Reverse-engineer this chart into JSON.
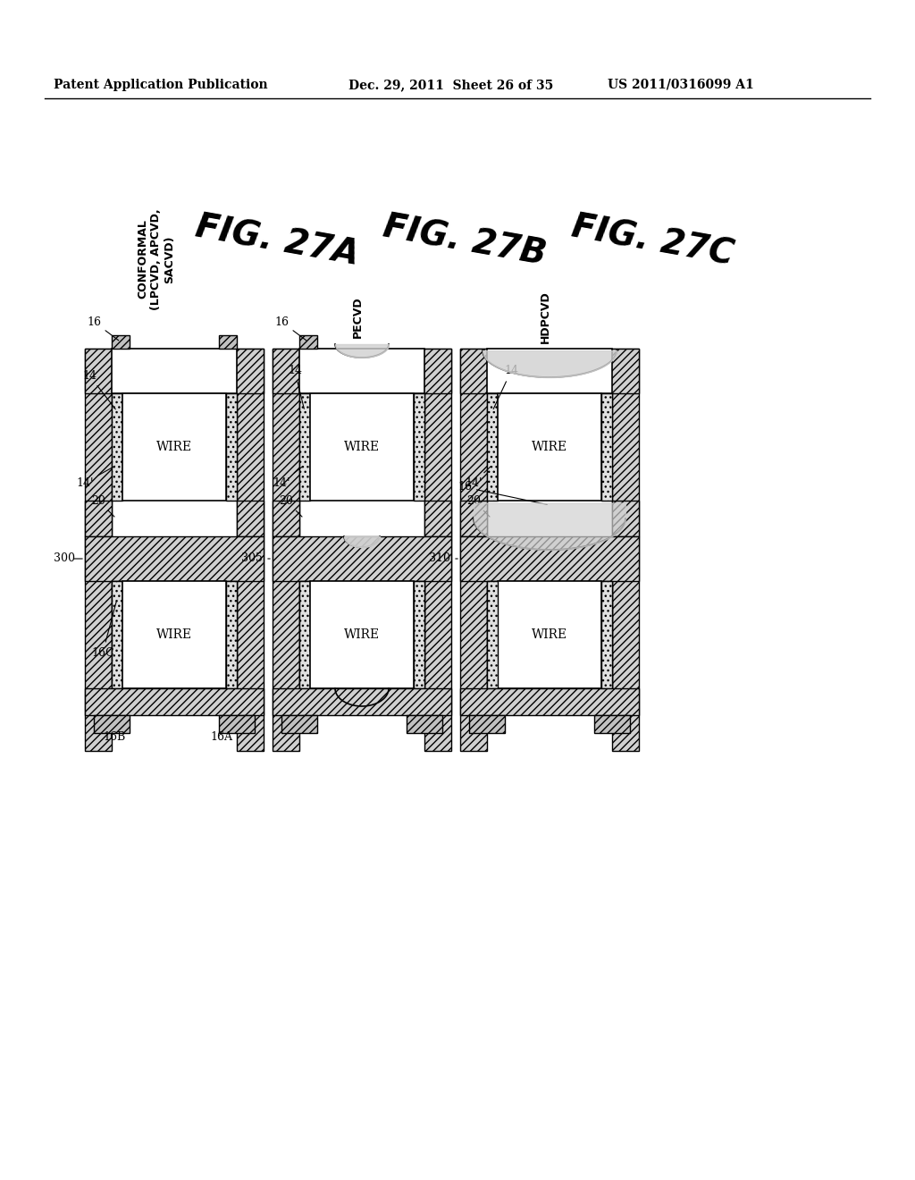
{
  "header_left": "Patent Application Publication",
  "header_mid": "Dec. 29, 2011  Sheet 26 of 35",
  "header_right": "US 2011/0316099 A1",
  "fig_labels": [
    "FIG. 27A",
    "FIG. 27B",
    "FIG. 27C"
  ],
  "fig_sublabels": [
    "CONFORMAL\n(LPCVD, APCVD,\nSACVD)",
    "PECVD",
    "HDPCVD"
  ],
  "wire_label": "WIRE",
  "background": "#ffffff",
  "hatch_color": "#555555",
  "line_color": "#000000"
}
